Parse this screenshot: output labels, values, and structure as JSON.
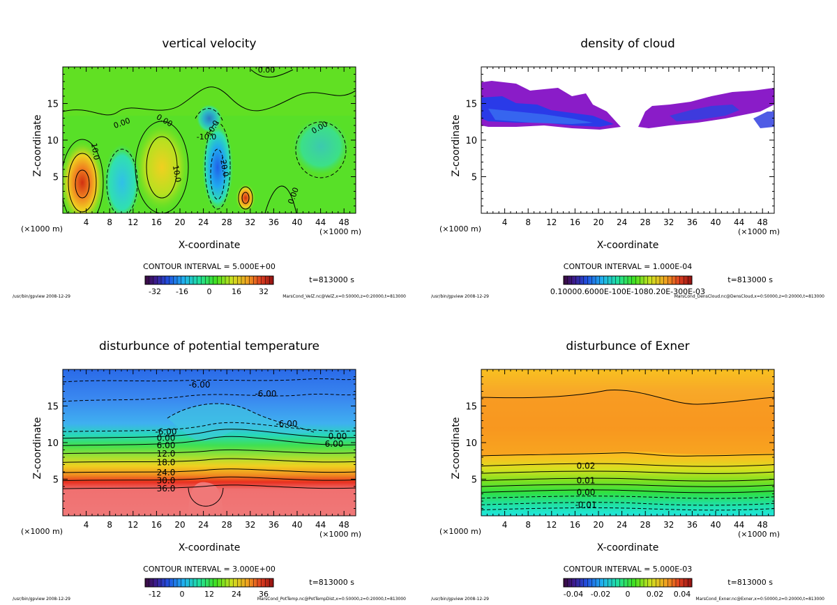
{
  "chart_data": [
    {
      "type": "heatmap",
      "title": "vertical velocity",
      "xlabel": "X-coordinate",
      "ylabel": "Z-coordinate",
      "xunit_left": "(×1000 m)",
      "xunit_right": "(×1000 m)",
      "xlim": [
        0,
        50
      ],
      "ylim": [
        0,
        20
      ],
      "xticks": [
        4,
        8,
        12,
        16,
        20,
        24,
        28,
        32,
        36,
        40,
        44,
        48
      ],
      "yticks": [
        5,
        10,
        15
      ],
      "contour_interval": "CONTOUR INTERVAL = 5.000E+00",
      "time": "t=813000 s",
      "colorbar_ticks": [
        "-32",
        "-16",
        "0",
        "16",
        "32"
      ],
      "contour_labels": [
        "10.0",
        "0.00",
        "0.00",
        "0.00",
        "10.0",
        "-10.0",
        "-20.0",
        "10.0",
        "0.00",
        "0.00"
      ],
      "footer_left": "/usr/bin/gpview  2008-12-29",
      "footer_right": "MarsCond_VelZ.nc@VelZ,x=0:50000,z=0:20000,t=813000"
    },
    {
      "type": "heatmap",
      "title": "density of cloud",
      "xlabel": "X-coordinate",
      "ylabel": "Z-coordinate",
      "xunit_left": "(×1000 m)",
      "xunit_right": "(×1000 m)",
      "xlim": [
        0,
        50
      ],
      "ylim": [
        0,
        20
      ],
      "xticks": [
        4,
        8,
        12,
        16,
        20,
        24,
        28,
        32,
        36,
        40,
        44,
        48
      ],
      "yticks": [
        5,
        10,
        15
      ],
      "contour_interval": "CONTOUR INTERVAL = 1.000E-04",
      "time": "t=813000 s",
      "colorbar_ticks_text": "0.10000.6000E-100E-1080.20E-300E-03",
      "footer_left": "/usr/bin/gpview  2008-12-29",
      "footer_right": "MarsCond_DensCloud.nc@DensCloud,x=0:50000,z=0:20000,t=813000"
    },
    {
      "type": "heatmap",
      "title": "disturbunce of potential temperature",
      "xlabel": "X-coordinate",
      "ylabel": "Z-coordinate",
      "xunit_left": "(×1000 m)",
      "xunit_right": "(×1000 m)",
      "xlim": [
        0,
        50
      ],
      "ylim": [
        0,
        20
      ],
      "xticks": [
        4,
        8,
        12,
        16,
        20,
        24,
        28,
        32,
        36,
        40,
        44,
        48
      ],
      "yticks": [
        5,
        10,
        15
      ],
      "contour_interval": "CONTOUR INTERVAL = 3.000E+00",
      "time": "t=813000 s",
      "colorbar_ticks": [
        "-12",
        "0",
        "12",
        "24",
        "36"
      ],
      "contour_levels": [
        {
          "label": "36.0",
          "z": 3.7
        },
        {
          "label": "30.0",
          "z": 4.8
        },
        {
          "label": "24.0",
          "z": 5.9
        },
        {
          "label": "18.0",
          "z": 7.3
        },
        {
          "label": "12.0",
          "z": 8.5
        },
        {
          "label": "6.00",
          "z": 9.6
        },
        {
          "label": "0.00",
          "z": 10.6
        },
        {
          "label": "-6.00",
          "z": 11.5
        }
      ],
      "contour_labels_extra": [
        "-6.00",
        "-6.00",
        "-6.00",
        "0.00",
        "6.00"
      ],
      "footer_left": "/usr/bin/gpview  2008-12-29",
      "footer_right": "MarsCond_PotTemp.nc@PotTempDist,x=0:50000,z=0:20000,t=813000"
    },
    {
      "type": "heatmap",
      "title": "disturbunce of Exner",
      "xlabel": "X-coordinate",
      "ylabel": "Z-coordinate",
      "xunit_left": "(×1000 m)",
      "xunit_right": "(×1000 m)",
      "xlim": [
        0,
        50
      ],
      "ylim": [
        0,
        20
      ],
      "xticks": [
        4,
        8,
        12,
        16,
        20,
        24,
        28,
        32,
        36,
        40,
        44,
        48
      ],
      "yticks": [
        5,
        10,
        15
      ],
      "contour_interval": "CONTOUR INTERVAL = 5.000E-03",
      "time": "t=813000 s",
      "colorbar_ticks": [
        "-0.04",
        "-0.02",
        "0",
        "0.02",
        "0.04"
      ],
      "contour_levels": [
        {
          "label": "0.02",
          "z": 6.8
        },
        {
          "label": "0.01",
          "z": 4.8
        },
        {
          "label": "0.00",
          "z": 3.2
        },
        {
          "label": "-0.01",
          "z": 1.5
        }
      ],
      "footer_left": "/usr/bin/gpview  2008-12-29",
      "footer_right": "MarsCond_Exner.nc@Exner,x=0:50000,z=0:20000,t=813000"
    }
  ]
}
